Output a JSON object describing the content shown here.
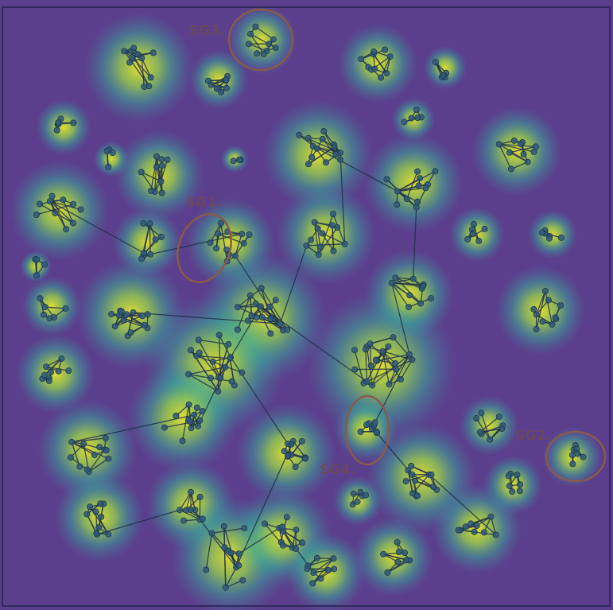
{
  "figure": {
    "background_color": "#5b3f8c",
    "frame_color": "#2e2a5c",
    "node_color": "#2f5a7a",
    "edge_color": "#1e2f4a",
    "ellipse_color": "#8a5a4a",
    "heat_colors": [
      "#3b8ea5",
      "#32b39a",
      "#7fd35a",
      "#e6e22b"
    ]
  },
  "subgraph_labels": [
    {
      "id": "sg1",
      "text": "SG1."
    },
    {
      "id": "sg2",
      "text": "SG2."
    },
    {
      "id": "sg3",
      "text": "SG3."
    },
    {
      "id": "sg4",
      "text": "SG4."
    }
  ]
}
